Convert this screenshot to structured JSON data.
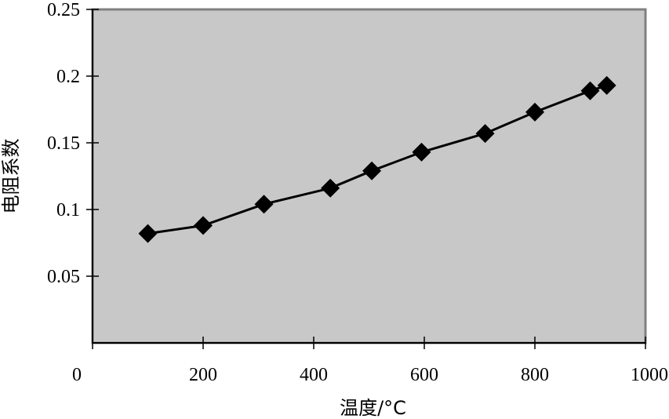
{
  "chart_data": {
    "type": "line",
    "title": "",
    "xlabel": "温度/°C",
    "ylabel": "电阻系数",
    "xlim": [
      0,
      1000
    ],
    "ylim": [
      0,
      0.25
    ],
    "xticks": [
      0,
      200,
      400,
      600,
      800,
      1000
    ],
    "xtick_labels": [
      "0",
      "200",
      "400",
      "600",
      "800",
      "1000"
    ],
    "yticks": [
      0.05,
      0.1,
      0.15,
      0.2,
      0.25
    ],
    "ytick_labels": [
      "0.05",
      "0.1",
      "0.15",
      "0.2",
      "0.25"
    ],
    "grid": false,
    "plot_background": "#c8c8c8",
    "line_color": "#000000",
    "marker": "diamond",
    "series": [
      {
        "x": [
          100,
          200,
          310,
          430,
          505,
          595,
          710,
          800,
          900,
          930
        ],
        "y": [
          0.082,
          0.088,
          0.104,
          0.116,
          0.129,
          0.143,
          0.157,
          0.173,
          0.189,
          0.193
        ]
      }
    ]
  }
}
